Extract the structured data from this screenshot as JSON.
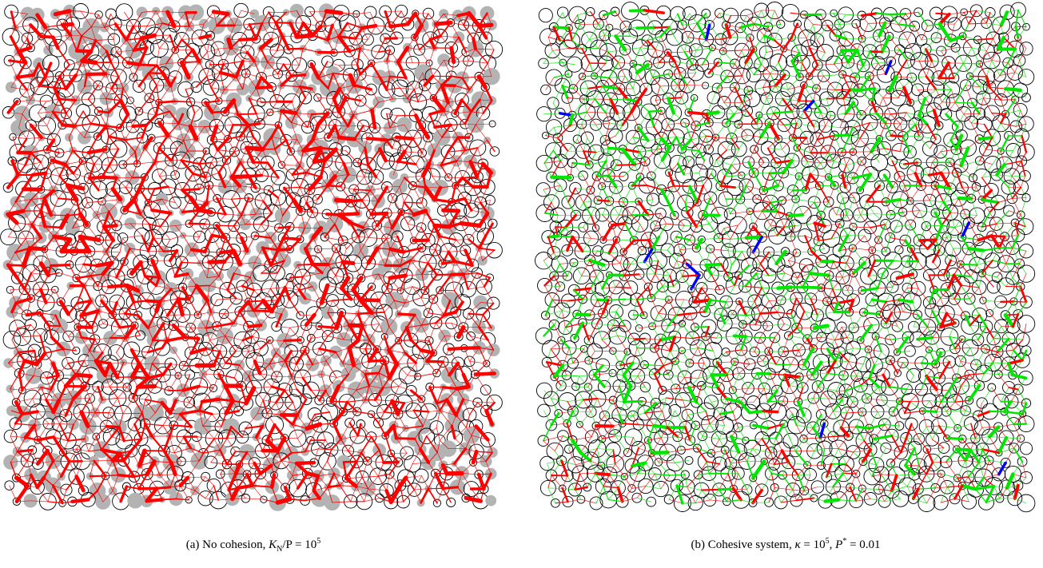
{
  "figure": {
    "panel_a": {
      "caption": {
        "label": "(a)",
        "text": "No cohesion,",
        "var": "K",
        "sub": "N",
        "rest": "/P = 10",
        "sup": "5"
      }
    },
    "panel_b": {
      "caption": {
        "label": "(b)",
        "text": "Cohesive system,",
        "var1": "κ",
        "rest1": " = 10",
        "sup": "5",
        "sep": ",",
        "var2": "P",
        "star": "*",
        "rest2": " = 0.01"
      }
    }
  }
}
